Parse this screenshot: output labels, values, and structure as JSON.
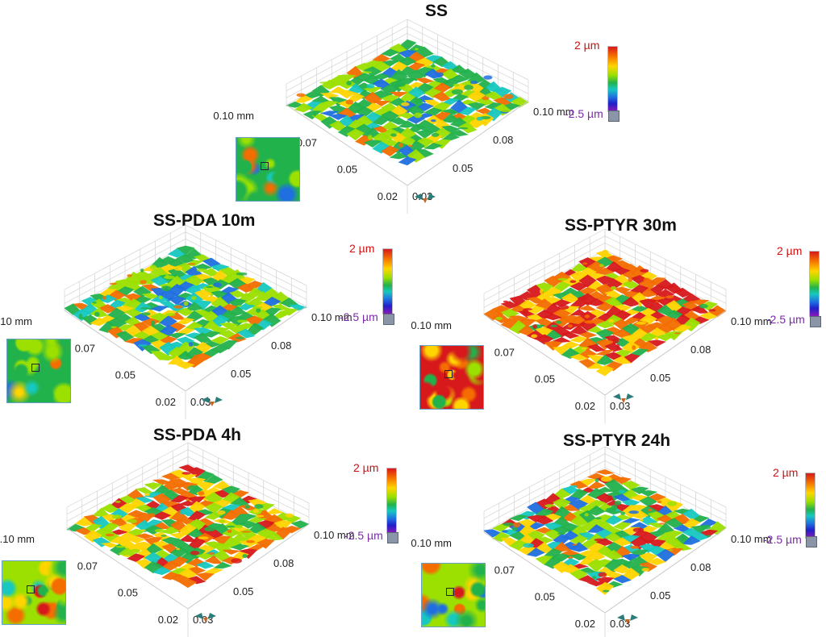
{
  "colorbar": {
    "max_label": "2 µm",
    "min_label": "-2.5 µm",
    "max_value": 2,
    "min_value": -2.5,
    "unit": "µm"
  },
  "axes": {
    "left_ticks": [
      "0.10 mm",
      "0.07",
      "0.05",
      "0.02"
    ],
    "right_ticks": [
      "0.10 mm",
      "0.08",
      "0.05",
      "0.03"
    ]
  },
  "colors": {
    "red": "#d7191c",
    "orange": "#f46d00",
    "yellow": "#ffd400",
    "lime": "#9be000",
    "green": "#22b24c",
    "cyan": "#16c8c0",
    "blue": "#1f6fe0",
    "violet": "#8a1ab8"
  },
  "panels": [
    {
      "id": "ss",
      "title": "SS",
      "palette": [
        "#22b24c",
        "#22b24c",
        "#22b24c",
        "#9be000",
        "#9be000",
        "#16c8c0",
        "#1f6fe0",
        "#ffd400",
        "#f46d00",
        "#22b24c"
      ]
    },
    {
      "id": "ss-pda-10m",
      "title": "SS-PDA 10m",
      "palette": [
        "#22b24c",
        "#22b24c",
        "#9be000",
        "#9be000",
        "#ffd400",
        "#16c8c0",
        "#1f6fe0",
        "#f46d00",
        "#22b24c",
        "#9be000"
      ]
    },
    {
      "id": "ss-ptyr-30m",
      "title": "SS-PTYR 30m",
      "palette": [
        "#d7191c",
        "#f46d00",
        "#f46d00",
        "#ffd400",
        "#d7191c",
        "#9be000",
        "#22b24c",
        "#f46d00",
        "#ffd400",
        "#d7191c"
      ]
    },
    {
      "id": "ss-pda-4h",
      "title": "SS-PDA 4h",
      "palette": [
        "#9be000",
        "#ffd400",
        "#f46d00",
        "#22b24c",
        "#9be000",
        "#d7191c",
        "#16c8c0",
        "#ffd400",
        "#22b24c",
        "#f46d00"
      ]
    },
    {
      "id": "ss-ptyr-24h",
      "title": "SS-PTYR 24h",
      "palette": [
        "#9be000",
        "#ffd400",
        "#22b24c",
        "#f46d00",
        "#16c8c0",
        "#1f6fe0",
        "#d7191c",
        "#9be000",
        "#ffd400",
        "#22b24c"
      ]
    }
  ]
}
